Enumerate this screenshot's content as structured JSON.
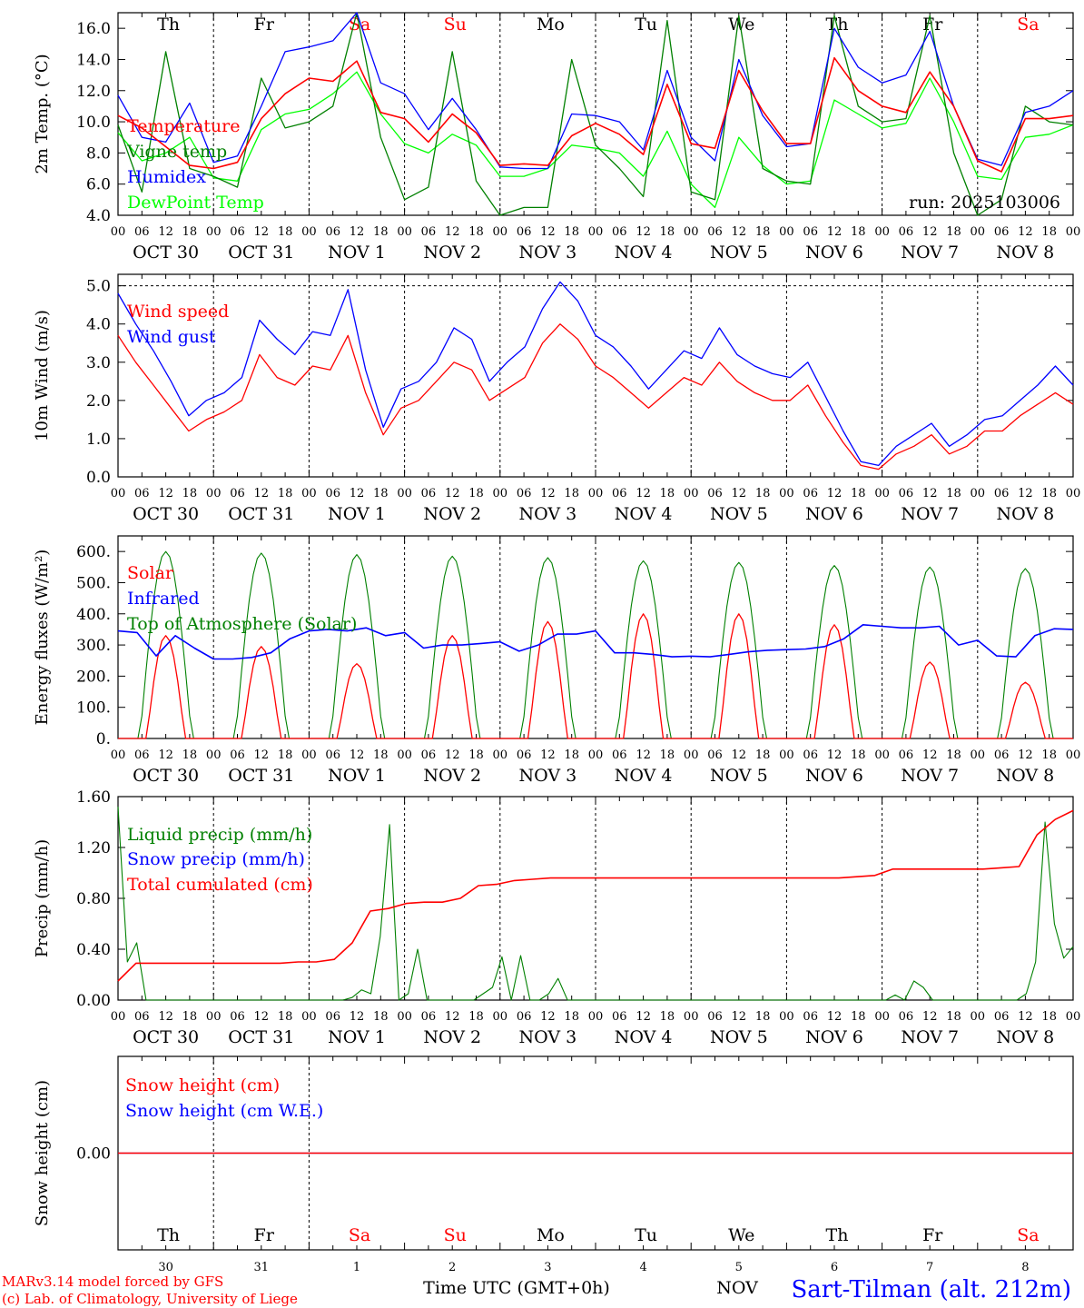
{
  "chart_data": {
    "type": "line",
    "days": [
      "Th",
      "Fr",
      "Sa",
      "Su",
      "Mo",
      "Tu",
      "We",
      "Th",
      "Fr",
      "Sa"
    ],
    "weekend_indices": [
      2,
      3,
      9
    ],
    "date_labels": [
      "OCT 30",
      "OCT 31",
      "NOV  1",
      "NOV  2",
      "NOV  3",
      "NOV  4",
      "NOV  5",
      "NOV  6",
      "NOV  7",
      "NOV  8"
    ],
    "hour_ticks": [
      "00",
      "06",
      "12",
      "18"
    ],
    "day_numbers": [
      "30",
      "31",
      "1",
      "2",
      "3",
      "4",
      "5",
      "6",
      "7",
      "8"
    ],
    "run_label": "run: 2025103006",
    "footer": {
      "model": "MARv3.14 model forced by GFS",
      "lab": "(c) Lab. of Climatology, University of Liege",
      "xlabel": "Time UTC (GMT+0h)",
      "station": "Sart-Tilman (alt. 212m)",
      "overlap_fragment": "NOV"
    },
    "colors": {
      "red": "#ff0000",
      "green": "#008000",
      "blue": "#0000ff",
      "lightgreen": "#00ff00",
      "weekend": "#ff0000"
    },
    "panels": [
      {
        "ylabel": "2m Temp. (°C)",
        "yrange": [
          4,
          17
        ],
        "yticks": [
          4.0,
          6.0,
          8.0,
          10.0,
          12.0,
          14.0,
          16.0
        ],
        "ytick_labels": [
          "4.0",
          "6.0",
          "8.0",
          "10.0",
          "12.0",
          "14.0",
          "16.0"
        ],
        "series": [
          {
            "name": "Temperature",
            "color": "#ff0000",
            "values": [
              10.4,
              9.6,
              8.4,
              7.2,
              7.0,
              7.4,
              10.2,
              11.8,
              12.8,
              12.6,
              13.9,
              10.6,
              10.2,
              8.7,
              10.5,
              9.3,
              7.2,
              7.3,
              7.2,
              9.1,
              9.9,
              9.2,
              7.9,
              12.4,
              8.6,
              8.3,
              13.3,
              10.7,
              8.6,
              8.6,
              14.1,
              12.0,
              11.0,
              10.6,
              13.2,
              11.0,
              7.5,
              6.8,
              10.2,
              10.2,
              10.4
            ]
          },
          {
            "name": "Vigne temp",
            "color": "#008000",
            "values": [
              9.8,
              5.5,
              14.5,
              7.0,
              6.5,
              5.8,
              12.8,
              9.6,
              10.0,
              11.0,
              17.0,
              9.0,
              5.0,
              5.8,
              14.5,
              6.2,
              4.0,
              4.5,
              4.5,
              14.0,
              8.5,
              7.0,
              5.2,
              16.5,
              5.5,
              5.0,
              16.8,
              7.0,
              6.2,
              6.0,
              16.8,
              11.0,
              10.0,
              10.2,
              16.8,
              8.0,
              3.8,
              5.0,
              11.0,
              10.0,
              9.8
            ]
          },
          {
            "name": "Humidex",
            "color": "#0000ff",
            "values": [
              11.7,
              9.0,
              8.7,
              11.2,
              7.4,
              7.8,
              11.0,
              14.5,
              14.8,
              15.2,
              17.0,
              12.5,
              11.8,
              9.5,
              11.5,
              9.5,
              7.1,
              7.0,
              7.0,
              10.5,
              10.4,
              10.0,
              8.2,
              13.3,
              9.0,
              7.5,
              14.0,
              10.4,
              8.4,
              8.6,
              16.0,
              13.5,
              12.5,
              13.0,
              15.8,
              11.0,
              7.6,
              7.2,
              10.6,
              11.0,
              12.0
            ]
          },
          {
            "name": "DewPoint Temp",
            "color": "#00ff00",
            "values": [
              9.3,
              7.5,
              8.0,
              9.0,
              6.4,
              6.2,
              9.5,
              10.5,
              10.8,
              11.8,
              13.2,
              10.5,
              8.6,
              8.0,
              9.2,
              8.5,
              6.5,
              6.5,
              7.0,
              8.5,
              8.3,
              8.0,
              6.5,
              9.4,
              6.0,
              4.5,
              9.0,
              7.2,
              6.0,
              6.2,
              11.4,
              10.5,
              9.6,
              9.9,
              12.8,
              10.0,
              6.5,
              6.3,
              9.0,
              9.2,
              9.8
            ]
          }
        ]
      },
      {
        "ylabel": "10m Wind (m/s)",
        "yrange": [
          0,
          5.3
        ],
        "yticks": [
          0,
          1,
          2,
          3,
          4,
          5
        ],
        "ytick_labels": [
          "0.0",
          "1.0",
          "2.0",
          "3.0",
          "4.0",
          "5.0"
        ],
        "dashed_y": 5.0,
        "series": [
          {
            "name": "Wind speed",
            "color": "#ff0000",
            "values": [
              3.7,
              3.0,
              2.4,
              1.8,
              1.2,
              1.5,
              1.7,
              2.0,
              3.2,
              2.6,
              2.4,
              2.9,
              2.8,
              3.7,
              2.2,
              1.1,
              1.8,
              2.0,
              2.5,
              3.0,
              2.8,
              2.0,
              2.3,
              2.6,
              3.5,
              4.0,
              3.6,
              2.9,
              2.6,
              2.2,
              1.8,
              2.2,
              2.6,
              2.4,
              3.0,
              2.5,
              2.2,
              2.0,
              2.0,
              2.4,
              1.6,
              0.9,
              0.3,
              0.2,
              0.6,
              0.8,
              1.1,
              0.6,
              0.8,
              1.2,
              1.2,
              1.6,
              1.9,
              2.2,
              1.9
            ]
          },
          {
            "name": "Wind gust",
            "color": "#0000ff",
            "values": [
              4.8,
              4.0,
              3.3,
              2.5,
              1.6,
              2.0,
              2.2,
              2.6,
              4.1,
              3.6,
              3.2,
              3.8,
              3.7,
              4.9,
              2.8,
              1.3,
              2.3,
              2.5,
              3.0,
              3.9,
              3.6,
              2.5,
              3.0,
              3.4,
              4.4,
              5.1,
              4.6,
              3.7,
              3.4,
              2.9,
              2.3,
              2.8,
              3.3,
              3.1,
              3.9,
              3.2,
              2.9,
              2.7,
              2.6,
              3.0,
              2.1,
              1.2,
              0.4,
              0.3,
              0.8,
              1.1,
              1.4,
              0.8,
              1.1,
              1.5,
              1.6,
              2.0,
              2.4,
              2.9,
              2.4
            ]
          }
        ]
      },
      {
        "ylabel": "Energy fluxes (W/m²)",
        "yrange": [
          0,
          650
        ],
        "yticks": [
          0,
          100,
          200,
          300,
          400,
          500,
          600
        ],
        "ytick_labels": [
          "0.",
          "100.",
          "200.",
          "300.",
          "400.",
          "500.",
          "600."
        ],
        "series": [
          {
            "name": "Solar",
            "color": "#ff0000",
            "daily_peak": [
              330,
              295,
              240,
              330,
              375,
              400,
              400,
              365,
              245,
              180
            ]
          },
          {
            "name": "Infrared",
            "color": "#0000ff",
            "values": [
              345,
              340,
              265,
              330,
              290,
              255,
              255,
              260,
              275,
              320,
              345,
              350,
              345,
              355,
              330,
              340,
              290,
              300,
              300,
              305,
              310,
              280,
              300,
              335,
              335,
              345,
              275,
              275,
              270,
              262,
              264,
              262,
              270,
              278,
              283,
              285,
              287,
              295,
              320,
              365,
              360,
              355,
              355,
              360,
              300,
              315,
              265,
              262,
              330,
              352,
              350
            ]
          },
          {
            "name": "Top of Atmosphere (Solar)",
            "color": "#008000",
            "daily_peak": [
              600,
              595,
              590,
              585,
              580,
              570,
              565,
              555,
              550,
              545
            ]
          }
        ]
      },
      {
        "ylabel": "Precip (mm/h)",
        "yrange": [
          0,
          1.6
        ],
        "yticks": [
          0,
          0.4,
          0.8,
          1.2,
          1.6
        ],
        "ytick_labels": [
          "0.00",
          "0.40",
          "0.80",
          "1.20",
          "1.60"
        ],
        "series": [
          {
            "name": "Liquid precip (mm/h)",
            "color": "#008000",
            "values": [
              1.52,
              0.3,
              0.45,
              0.0,
              0,
              0,
              0,
              0,
              0,
              0,
              0,
              0,
              0,
              0,
              0,
              0,
              0,
              0,
              0,
              0,
              0,
              0,
              0,
              0,
              0,
              0.02,
              0.08,
              0.05,
              0.5,
              1.38,
              0.0,
              0.05,
              0.4,
              0.0,
              0.0,
              0.0,
              0,
              0,
              0,
              0.05,
              0.1,
              0.34,
              0.0,
              0.35,
              0.0,
              0,
              0.05,
              0.17,
              0.0,
              0,
              0,
              0,
              0,
              0,
              0,
              0,
              0,
              0,
              0,
              0,
              0,
              0,
              0,
              0,
              0,
              0,
              0,
              0,
              0,
              0,
              0,
              0,
              0,
              0,
              0,
              0,
              0,
              0,
              0,
              0,
              0,
              0,
              0,
              0.04,
              0.0,
              0.15,
              0.1,
              0.0,
              0,
              0,
              0,
              0,
              0,
              0,
              0,
              0,
              0.0,
              0.05,
              0.3,
              1.4,
              0.6,
              0.33,
              0.42
            ]
          },
          {
            "name": "Snow precip (mm/h)",
            "color": "#0000ff",
            "values": [
              0,
              0
            ]
          },
          {
            "name": "Total cumulated (cm)",
            "color": "#ff0000",
            "values": [
              0.15,
              0.29,
              0.29,
              0.29,
              0.29,
              0.29,
              0.29,
              0.29,
              0.29,
              0.29,
              0.3,
              0.3,
              0.32,
              0.45,
              0.7,
              0.72,
              0.76,
              0.77,
              0.77,
              0.8,
              0.9,
              0.91,
              0.94,
              0.95,
              0.96,
              0.96,
              0.96,
              0.96,
              0.96,
              0.96,
              0.96,
              0.96,
              0.96,
              0.96,
              0.96,
              0.96,
              0.96,
              0.96,
              0.96,
              0.96,
              0.96,
              0.97,
              0.98,
              1.03,
              1.03,
              1.03,
              1.03,
              1.03,
              1.03,
              1.04,
              1.05,
              1.3,
              1.42,
              1.49
            ]
          }
        ]
      },
      {
        "ylabel": "Snow height (cm)",
        "yrange": [
          -1,
          1
        ],
        "yticks": [
          0
        ],
        "ytick_labels": [
          "0.00"
        ],
        "series": [
          {
            "name": "Snow height (cm)",
            "color": "#ff0000",
            "values": [
              0,
              0
            ]
          },
          {
            "name": "Snow height (cm W.E.)",
            "color": "#0000ff",
            "values": [
              0,
              0
            ]
          }
        ]
      }
    ]
  }
}
